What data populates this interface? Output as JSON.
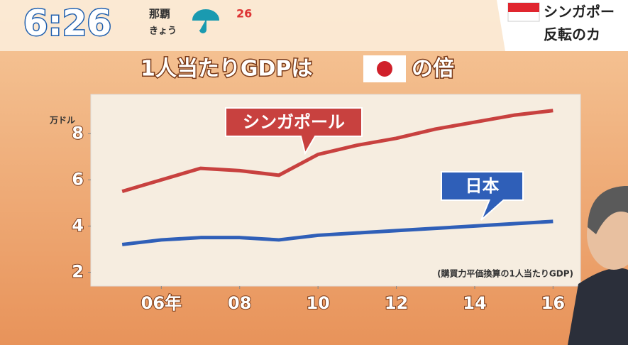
{
  "header": {
    "clock": "6:26",
    "city": "那覇",
    "day": "きょう",
    "temp": "26",
    "story_line1": "シンガポー",
    "story_line2": "反転のカ"
  },
  "chart_data": {
    "type": "line",
    "title": "1人当たりGDPは",
    "title_end": "の倍",
    "y_unit": "万ドル",
    "note": "(購買力平価換算の1人当たりGDP)",
    "x": [
      5,
      6,
      7,
      8,
      9,
      10,
      11,
      12,
      13,
      14,
      15,
      16
    ],
    "xlim": [
      4.2,
      16.7
    ],
    "xticks": [
      {
        "value": 6,
        "label": "06年"
      },
      {
        "value": 8,
        "label": "08"
      },
      {
        "value": 10,
        "label": "10"
      },
      {
        "value": 12,
        "label": "12"
      },
      {
        "value": 14,
        "label": "14"
      },
      {
        "value": 16,
        "label": "16"
      }
    ],
    "ylim": [
      1.4,
      9.7
    ],
    "yticks": [
      2,
      4,
      6,
      8
    ],
    "series": [
      {
        "name": "シンガポール",
        "color": "#c8413f",
        "values": [
          5.5,
          6.0,
          6.5,
          6.4,
          6.2,
          7.1,
          7.5,
          7.8,
          8.2,
          8.5,
          8.8,
          9.0
        ]
      },
      {
        "name": "日本",
        "color": "#2f5fb8",
        "values": [
          3.2,
          3.4,
          3.5,
          3.5,
          3.4,
          3.6,
          3.7,
          3.8,
          3.9,
          4.0,
          4.1,
          4.2
        ]
      }
    ]
  }
}
